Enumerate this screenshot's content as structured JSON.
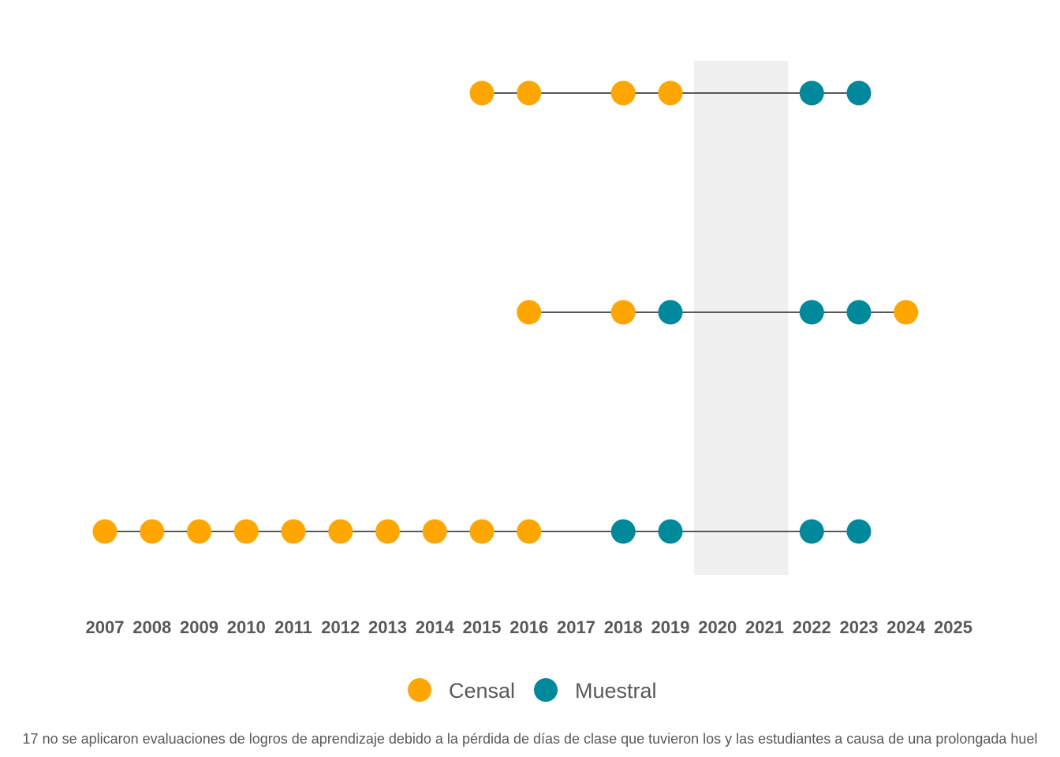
{
  "chart_data": {
    "type": "scatter",
    "x_axis": {
      "ticks": [
        "2007",
        "2008",
        "2009",
        "2010",
        "2011",
        "2012",
        "2013",
        "2014",
        "2015",
        "2016",
        "2017",
        "2018",
        "2019",
        "2020",
        "2021",
        "2022",
        "2023",
        "2024",
        "2025"
      ],
      "range": [
        2007,
        2025
      ]
    },
    "shaded_region": {
      "from": 2019.5,
      "to": 2021.5,
      "color": "#f0f0f0"
    },
    "categories": {
      "Censal": {
        "color": "#ffa600"
      },
      "Muestral": {
        "color": "#00899b"
      }
    },
    "rows": [
      {
        "points": [
          {
            "x": 2015,
            "type": "Censal"
          },
          {
            "x": 2016,
            "type": "Censal"
          },
          {
            "x": 2018,
            "type": "Censal"
          },
          {
            "x": 2019,
            "type": "Censal"
          },
          {
            "x": 2022,
            "type": "Muestral"
          },
          {
            "x": 2023,
            "type": "Muestral"
          }
        ]
      },
      {
        "points": [
          {
            "x": 2016,
            "type": "Censal"
          },
          {
            "x": 2018,
            "type": "Censal"
          },
          {
            "x": 2019,
            "type": "Muestral"
          },
          {
            "x": 2022,
            "type": "Muestral"
          },
          {
            "x": 2023,
            "type": "Muestral"
          },
          {
            "x": 2024,
            "type": "Censal"
          }
        ]
      },
      {
        "points": [
          {
            "x": 2007,
            "type": "Censal"
          },
          {
            "x": 2008,
            "type": "Censal"
          },
          {
            "x": 2009,
            "type": "Censal"
          },
          {
            "x": 2010,
            "type": "Censal"
          },
          {
            "x": 2011,
            "type": "Censal"
          },
          {
            "x": 2012,
            "type": "Censal"
          },
          {
            "x": 2013,
            "type": "Censal"
          },
          {
            "x": 2014,
            "type": "Censal"
          },
          {
            "x": 2015,
            "type": "Censal"
          },
          {
            "x": 2016,
            "type": "Censal"
          },
          {
            "x": 2018,
            "type": "Muestral"
          },
          {
            "x": 2019,
            "type": "Muestral"
          },
          {
            "x": 2022,
            "type": "Muestral"
          },
          {
            "x": 2023,
            "type": "Muestral"
          }
        ]
      }
    ],
    "legend": {
      "position": "bottom",
      "items": [
        {
          "label": "Censal",
          "color": "#ffa600"
        },
        {
          "label": "Muestral",
          "color": "#00899b"
        }
      ]
    },
    "line_color": "#595959",
    "grid": false
  },
  "footnote": "17 no se aplicaron evaluaciones de logros de aprendizaje debido a la pérdida de días de clase que tuvieron los y las estudiantes a causa de una prolongada huel"
}
